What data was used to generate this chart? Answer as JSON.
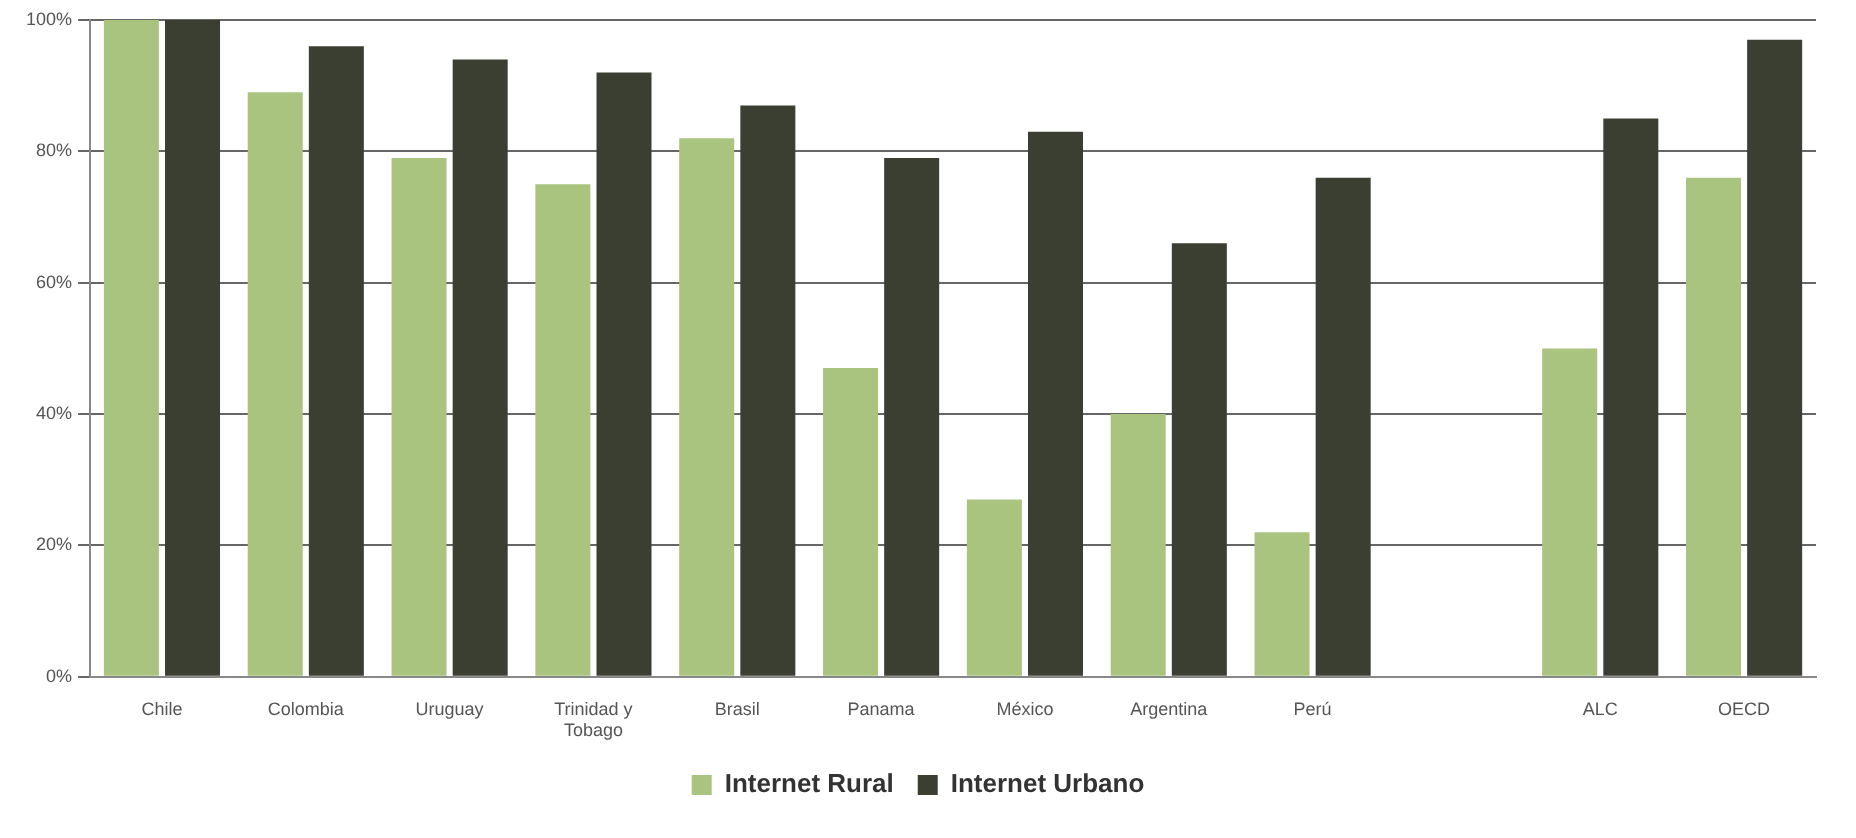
{
  "chart_data": {
    "type": "bar",
    "categories": [
      "Chile",
      "Colombia",
      "Uruguay",
      "Trinidad y Tobago",
      "Brasil",
      "Panama",
      "México",
      "Argentina",
      "Perú",
      null,
      "ALC",
      "OECD"
    ],
    "series": [
      {
        "name": "Internet Rural",
        "color": "#a9c47f",
        "values": [
          100,
          89,
          79,
          75,
          82,
          47,
          27,
          40,
          22,
          null,
          50,
          76
        ]
      },
      {
        "name": "Internet Urbano",
        "color": "#3a3f32",
        "values": [
          100,
          96,
          94,
          92,
          87,
          79,
          83,
          66,
          76,
          null,
          85,
          97
        ]
      }
    ],
    "ylim": [
      0,
      100
    ],
    "yticks": [
      {
        "value": 0,
        "label": "0%"
      },
      {
        "value": 20,
        "label": "20%"
      },
      {
        "value": 40,
        "label": "40%"
      },
      {
        "value": 60,
        "label": "60%"
      },
      {
        "value": 80,
        "label": "80%"
      },
      {
        "value": 100,
        "label": "100%"
      }
    ],
    "grid": "y",
    "legend": "bottom"
  }
}
